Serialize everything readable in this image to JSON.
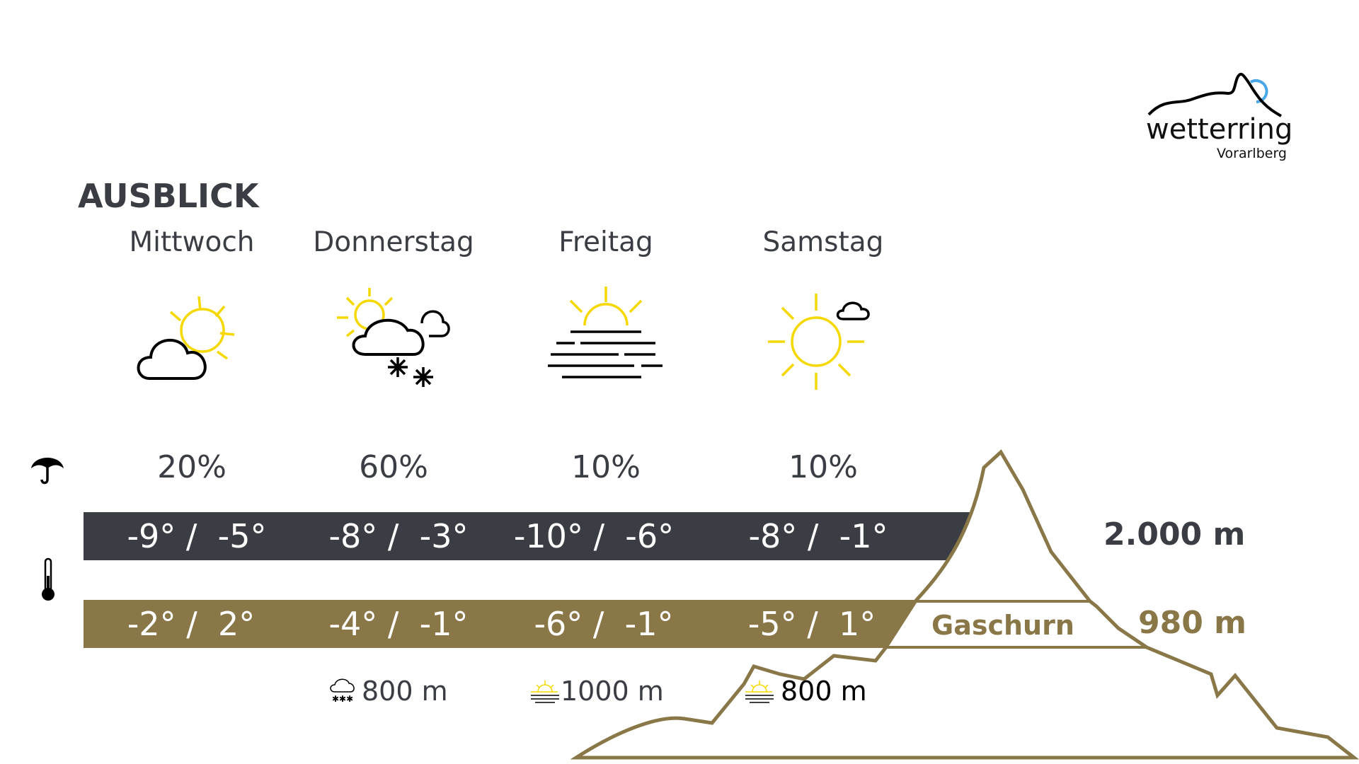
{
  "logo": {
    "name": "wetterring",
    "region": "Vorarlberg"
  },
  "title": "AUSBLICK",
  "days": [
    {
      "name": "Mittwoch",
      "icon": "sun-behind-cloud-icon",
      "precip": "20%",
      "mountain_temp": "-9° /  -5°",
      "valley_temp": "-2° /  2°"
    },
    {
      "name": "Donnerstag",
      "icon": "sun-cloud-snow-icon",
      "precip": "60%",
      "mountain_temp": "-8° /  -3°",
      "valley_temp": "-4° /  -1°"
    },
    {
      "name": "Freitag",
      "icon": "fog-sunrise-icon",
      "precip": "10%",
      "mountain_temp": "-10° /  -6°",
      "valley_temp": "-6° /  -1°"
    },
    {
      "name": "Samstag",
      "icon": "sun-small-cloud-icon",
      "precip": "10%",
      "mountain_temp": "-8° /  -1°",
      "valley_temp": "-5° /  1°"
    }
  ],
  "altitudes": {
    "mountain": "2.000 m",
    "valley": "980 m",
    "location": "Gaschurn"
  },
  "extras": [
    {
      "icon": "snow-cloud-icon",
      "value": "800 m"
    },
    {
      "icon": "fog-icon",
      "value": "1000 m"
    },
    {
      "icon": "fog-icon",
      "value": "800 m"
    }
  ],
  "colors": {
    "dark": "#3b3d44",
    "gold": "#8a7748",
    "sun": "#f5d800",
    "logo_accent": "#4aa8e8"
  }
}
